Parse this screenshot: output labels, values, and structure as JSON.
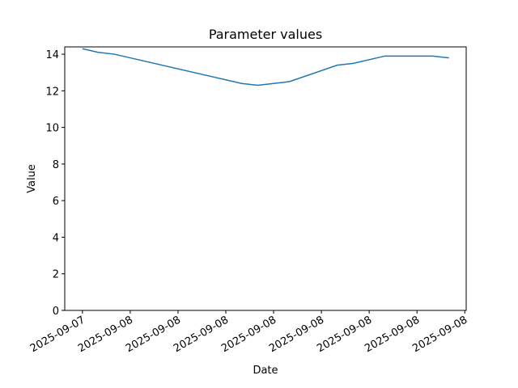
{
  "chart_data": {
    "type": "line",
    "title": "Parameter values",
    "x_label": "Date",
    "y_label": "Value",
    "x": [
      0,
      0.33,
      0.67,
      3.33,
      3.67,
      4.33,
      5.33,
      5.67,
      6.33,
      7.33,
      7.67
    ],
    "series": [
      {
        "name": "Value",
        "color": "#1f77b4",
        "values": [
          14.3,
          14.1,
          14.0,
          12.4,
          12.3,
          12.5,
          13.4,
          13.5,
          13.9,
          13.9,
          13.8
        ]
      }
    ],
    "xlim": [
      -0.37,
      8.03
    ],
    "xticks": [
      {
        "value": 0,
        "label": "2025-09-07"
      },
      {
        "value": 1,
        "label": "2025-09-08"
      },
      {
        "value": 2,
        "label": "2025-09-08"
      },
      {
        "value": 3,
        "label": "2025-09-08"
      },
      {
        "value": 4,
        "label": "2025-09-08"
      },
      {
        "value": 5,
        "label": "2025-09-08"
      },
      {
        "value": 6,
        "label": "2025-09-08"
      },
      {
        "value": 7,
        "label": "2025-09-08"
      },
      {
        "value": 8,
        "label": "2025-09-08"
      }
    ],
    "ylim": [
      0,
      14.4
    ],
    "yticks": [
      0,
      2,
      4,
      6,
      8,
      10,
      12,
      14
    ],
    "grid": false
  }
}
